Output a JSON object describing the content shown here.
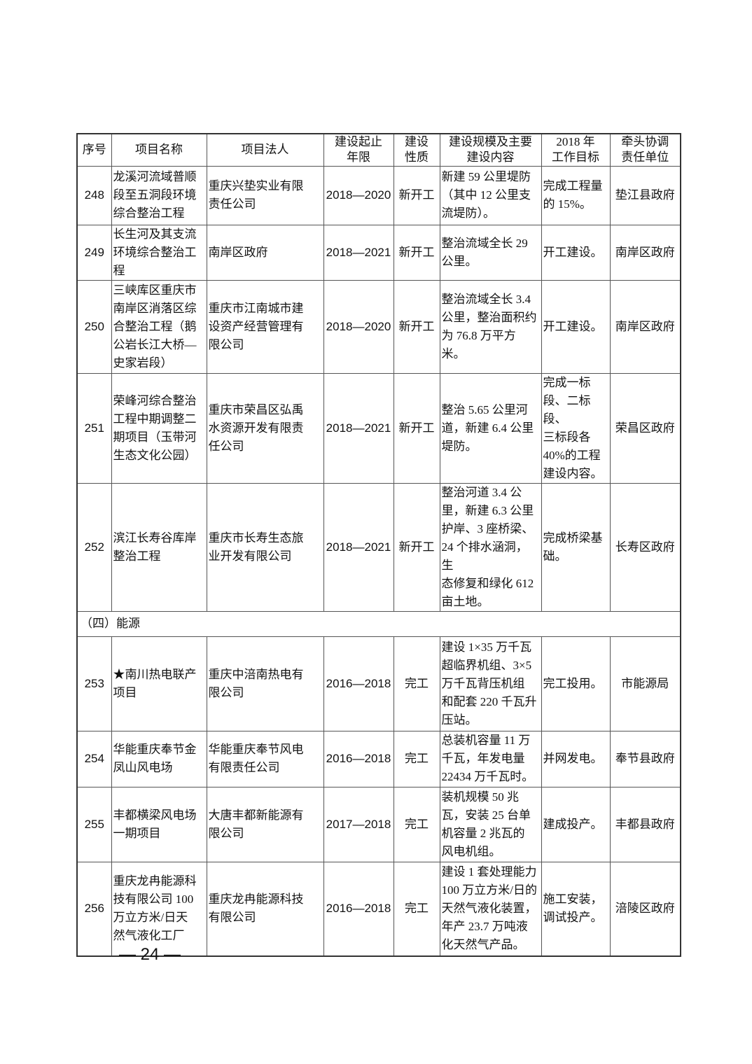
{
  "headers": [
    "序号",
    "项目名称",
    "项目法人",
    "建设起止\n年限",
    "建设\n性质",
    "建设规模及主要\n建设内容",
    "2018 年\n工作目标",
    "牵头协调\n责任单位"
  ],
  "rows_a": [
    {
      "no": "248",
      "name": "龙溪河流域普顺\n段至五洞段环境\n综合整治工程",
      "owner": "重庆兴垫实业有限\n责任公司",
      "period": "2018—2020",
      "nature": "新开工",
      "scope": "新建 59 公里堤防\n（其中 12 公里支\n流堤防）。",
      "goal": "完成工程量\n的 15%。",
      "unit": "垫江县政府"
    },
    {
      "no": "249",
      "name": "长生河及其支流\n环境综合整治工\n程",
      "owner": "南岸区政府",
      "period": "2018—2021",
      "nature": "新开工",
      "scope": "整治流域全长 29\n公里。",
      "goal": "开工建设。",
      "unit": "南岸区政府"
    },
    {
      "no": "250",
      "name": "三峡库区重庆市\n南岸区消落区综\n合整治工程（鹅\n公岩长江大桥—\n史家岩段）",
      "owner": "重庆市江南城市建\n设资产经营管理有\n限公司",
      "period": "2018—2020",
      "nature": "新开工",
      "scope": "整治流域全长 3.4\n公里，整治面积约\n为 76.8 万平方米。",
      "goal": "开工建设。",
      "unit": "南岸区政府"
    },
    {
      "no": "251",
      "name": "荣峰河综合整治\n工程中期调整二\n期项目（玉带河\n生态文化公园）",
      "owner": "重庆市荣昌区弘禹\n水资源开发有限责\n任公司",
      "period": "2018—2021",
      "nature": "新开工",
      "scope": "整治 5.65 公里河\n道，新建 6.4 公里\n堤防。",
      "goal": "完成一标\n段、二标段、\n三标段各\n40%的工程\n建设内容。",
      "unit": "荣昌区政府"
    },
    {
      "no": "252",
      "name": "滨江长寿谷库岸\n整治工程",
      "owner": "重庆市长寿生态旅\n业开发有限公司",
      "period": "2018—2021",
      "nature": "新开工",
      "scope": "整治河道 3.4 公\n里，新建 6.3 公里\n护岸、3 座桥梁、\n24 个排水涵洞，生\n态修复和绿化 612\n亩土地。",
      "goal": "完成桥梁基\n础。",
      "unit": "长寿区政府"
    }
  ],
  "section": "（四）能源",
  "rows_b": [
    {
      "no": "253",
      "name": "★南川热电联产\n项目",
      "owner": "重庆中涪南热电有\n限公司",
      "period": "2016—2018",
      "nature": "完工",
      "scope": "建设 1×35 万千瓦\n超临界机组、3×5\n万千瓦背压机组\n和配套 220 千瓦升\n压站。",
      "goal": "完工投用。",
      "unit": "市能源局"
    },
    {
      "no": "254",
      "name": "华能重庆奉节金\n凤山风电场",
      "owner": "华能重庆奉节风电\n有限责任公司",
      "period": "2016—2018",
      "nature": "完工",
      "scope": "总装机容量 11 万\n千瓦，年发电量\n22434 万千瓦时。",
      "goal": "并网发电。",
      "unit": "奉节县政府"
    },
    {
      "no": "255",
      "name": "丰都横梁风电场\n一期项目",
      "owner": "大唐丰都新能源有\n限公司",
      "period": "2017—2018",
      "nature": "完工",
      "scope": "装机规模 50 兆\n瓦，安装 25 台单\n机容量 2 兆瓦的\n风电机组。",
      "goal": "建成投产。",
      "unit": "丰都县政府"
    },
    {
      "no": "256",
      "name": "重庆龙冉能源科\n技有限公司 100\n万立方米/日天\n然气液化工厂",
      "owner": "重庆龙冉能源科技\n有限公司",
      "period": "2016—2018",
      "nature": "完工",
      "scope": "建设 1 套处理能力\n100 万立方米/日的\n天然气液化装置，\n年产 23.7 万吨液\n化天然气产品。",
      "goal": "施工安装，\n调试投产。",
      "unit": "涪陵区政府"
    }
  ],
  "page_number": "— 24 —"
}
